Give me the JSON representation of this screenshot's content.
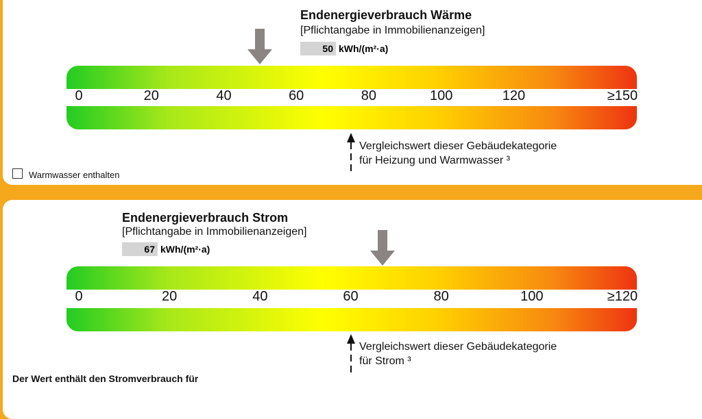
{
  "heat": {
    "title": "Endenergieverbrauch Wärme",
    "subtitle": "[Pflichtangabe in Immobilienanzeigen]",
    "value": "50",
    "value_num": 50,
    "unit": "kWh/(m²·a)",
    "scale_max": 150,
    "ticks": [
      "0",
      "20",
      "40",
      "60",
      "80",
      "100",
      "120",
      "≥150"
    ],
    "tick_values": [
      0,
      20,
      40,
      60,
      80,
      100,
      120,
      150
    ],
    "comparison_value": 75,
    "comparison_line1": "Vergleichswert dieser Gebäudekategorie",
    "comparison_line2": "für Heizung und Warmwasser ³",
    "checkbox_label": "Warmwasser enthalten",
    "checkbox_checked": false
  },
  "power": {
    "title": "Endenergieverbrauch Strom",
    "subtitle": "[Pflichtangabe in Immobilienanzeigen]",
    "value": "67",
    "value_num": 67,
    "unit": "kWh/(m²·a)",
    "scale_max": 120,
    "ticks": [
      "0",
      "20",
      "40",
      "60",
      "80",
      "100",
      "≥120"
    ],
    "tick_values": [
      0,
      20,
      40,
      60,
      80,
      100,
      120
    ],
    "comparison_value": 60,
    "comparison_line1": "Vergleichswert dieser Gebäudekategorie",
    "comparison_line2": "für Strom ³",
    "footer": "Der Wert enthält den Stromverbrauch für"
  },
  "colors": {
    "frame": "#f5a81c",
    "marker": "#8a8483",
    "value_bg": "#d4d4d4"
  }
}
